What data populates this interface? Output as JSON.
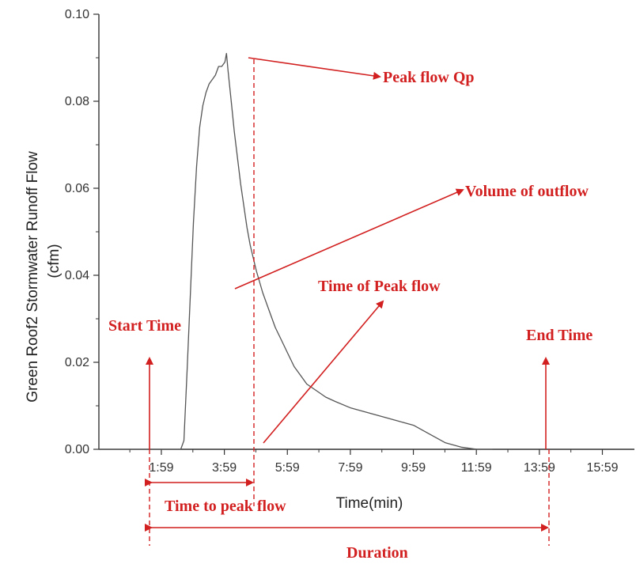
{
  "chart_data": {
    "type": "line",
    "xlabel": "Time(min)",
    "ylabel_line1": "Green Roof2 Stormwater Runoff Flow",
    "ylabel_line2": "(cfm)",
    "ylim": [
      0,
      0.1
    ],
    "xlim_minutes": [
      0,
      17
    ],
    "y_ticks": [
      "0.00",
      "0.02",
      "0.04",
      "0.06",
      "0.08",
      "0.10"
    ],
    "x_ticks": [
      {
        "minutes": 1.983,
        "label": "1:59"
      },
      {
        "minutes": 3.983,
        "label": "3:59"
      },
      {
        "minutes": 5.983,
        "label": "5:59"
      },
      {
        "minutes": 7.983,
        "label": "7:59"
      },
      {
        "minutes": 9.983,
        "label": "9:59"
      },
      {
        "minutes": 11.983,
        "label": "11:59"
      },
      {
        "minutes": 13.983,
        "label": "13:59"
      },
      {
        "minutes": 15.983,
        "label": "15:59"
      }
    ],
    "series": [
      {
        "color": "#555555",
        "x": [
          2.6,
          2.7,
          2.8,
          2.9,
          3.0,
          3.1,
          3.2,
          3.3,
          3.4,
          3.5,
          3.6,
          3.7,
          3.8,
          3.9,
          4.0,
          4.05,
          4.1,
          4.2,
          4.3,
          4.4,
          4.5,
          4.6,
          4.7,
          4.8,
          4.9,
          5.0,
          5.2,
          5.4,
          5.6,
          5.8,
          6.0,
          6.2,
          6.4,
          6.6,
          6.8,
          7.0,
          7.2,
          7.5,
          8.0,
          8.5,
          9.0,
          9.5,
          10.0,
          10.5,
          11.0,
          11.5,
          12.0,
          12.5
        ],
        "y": [
          0.0,
          0.002,
          0.018,
          0.035,
          0.052,
          0.065,
          0.074,
          0.079,
          0.082,
          0.084,
          0.085,
          0.086,
          0.088,
          0.088,
          0.089,
          0.091,
          0.087,
          0.08,
          0.073,
          0.067,
          0.061,
          0.056,
          0.051,
          0.047,
          0.044,
          0.041,
          0.036,
          0.032,
          0.028,
          0.025,
          0.022,
          0.019,
          0.017,
          0.015,
          0.014,
          0.013,
          0.012,
          0.011,
          0.0095,
          0.0085,
          0.0075,
          0.0065,
          0.0055,
          0.0035,
          0.0015,
          0.0005,
          0.0,
          0.0
        ]
      }
    ],
    "annotations": {
      "peak_flow": "Peak flow Qp",
      "volume": "Volume of outflow",
      "time_of_peak": "Time of Peak flow",
      "start": "Start Time",
      "end": "End Time",
      "time_to_peak": "Time to peak flow",
      "duration": "Duration"
    },
    "markers_minutes": {
      "start": 1.4,
      "peak": 4.4,
      "end": 13.9
    },
    "annotation_color": "#d21f1f"
  }
}
